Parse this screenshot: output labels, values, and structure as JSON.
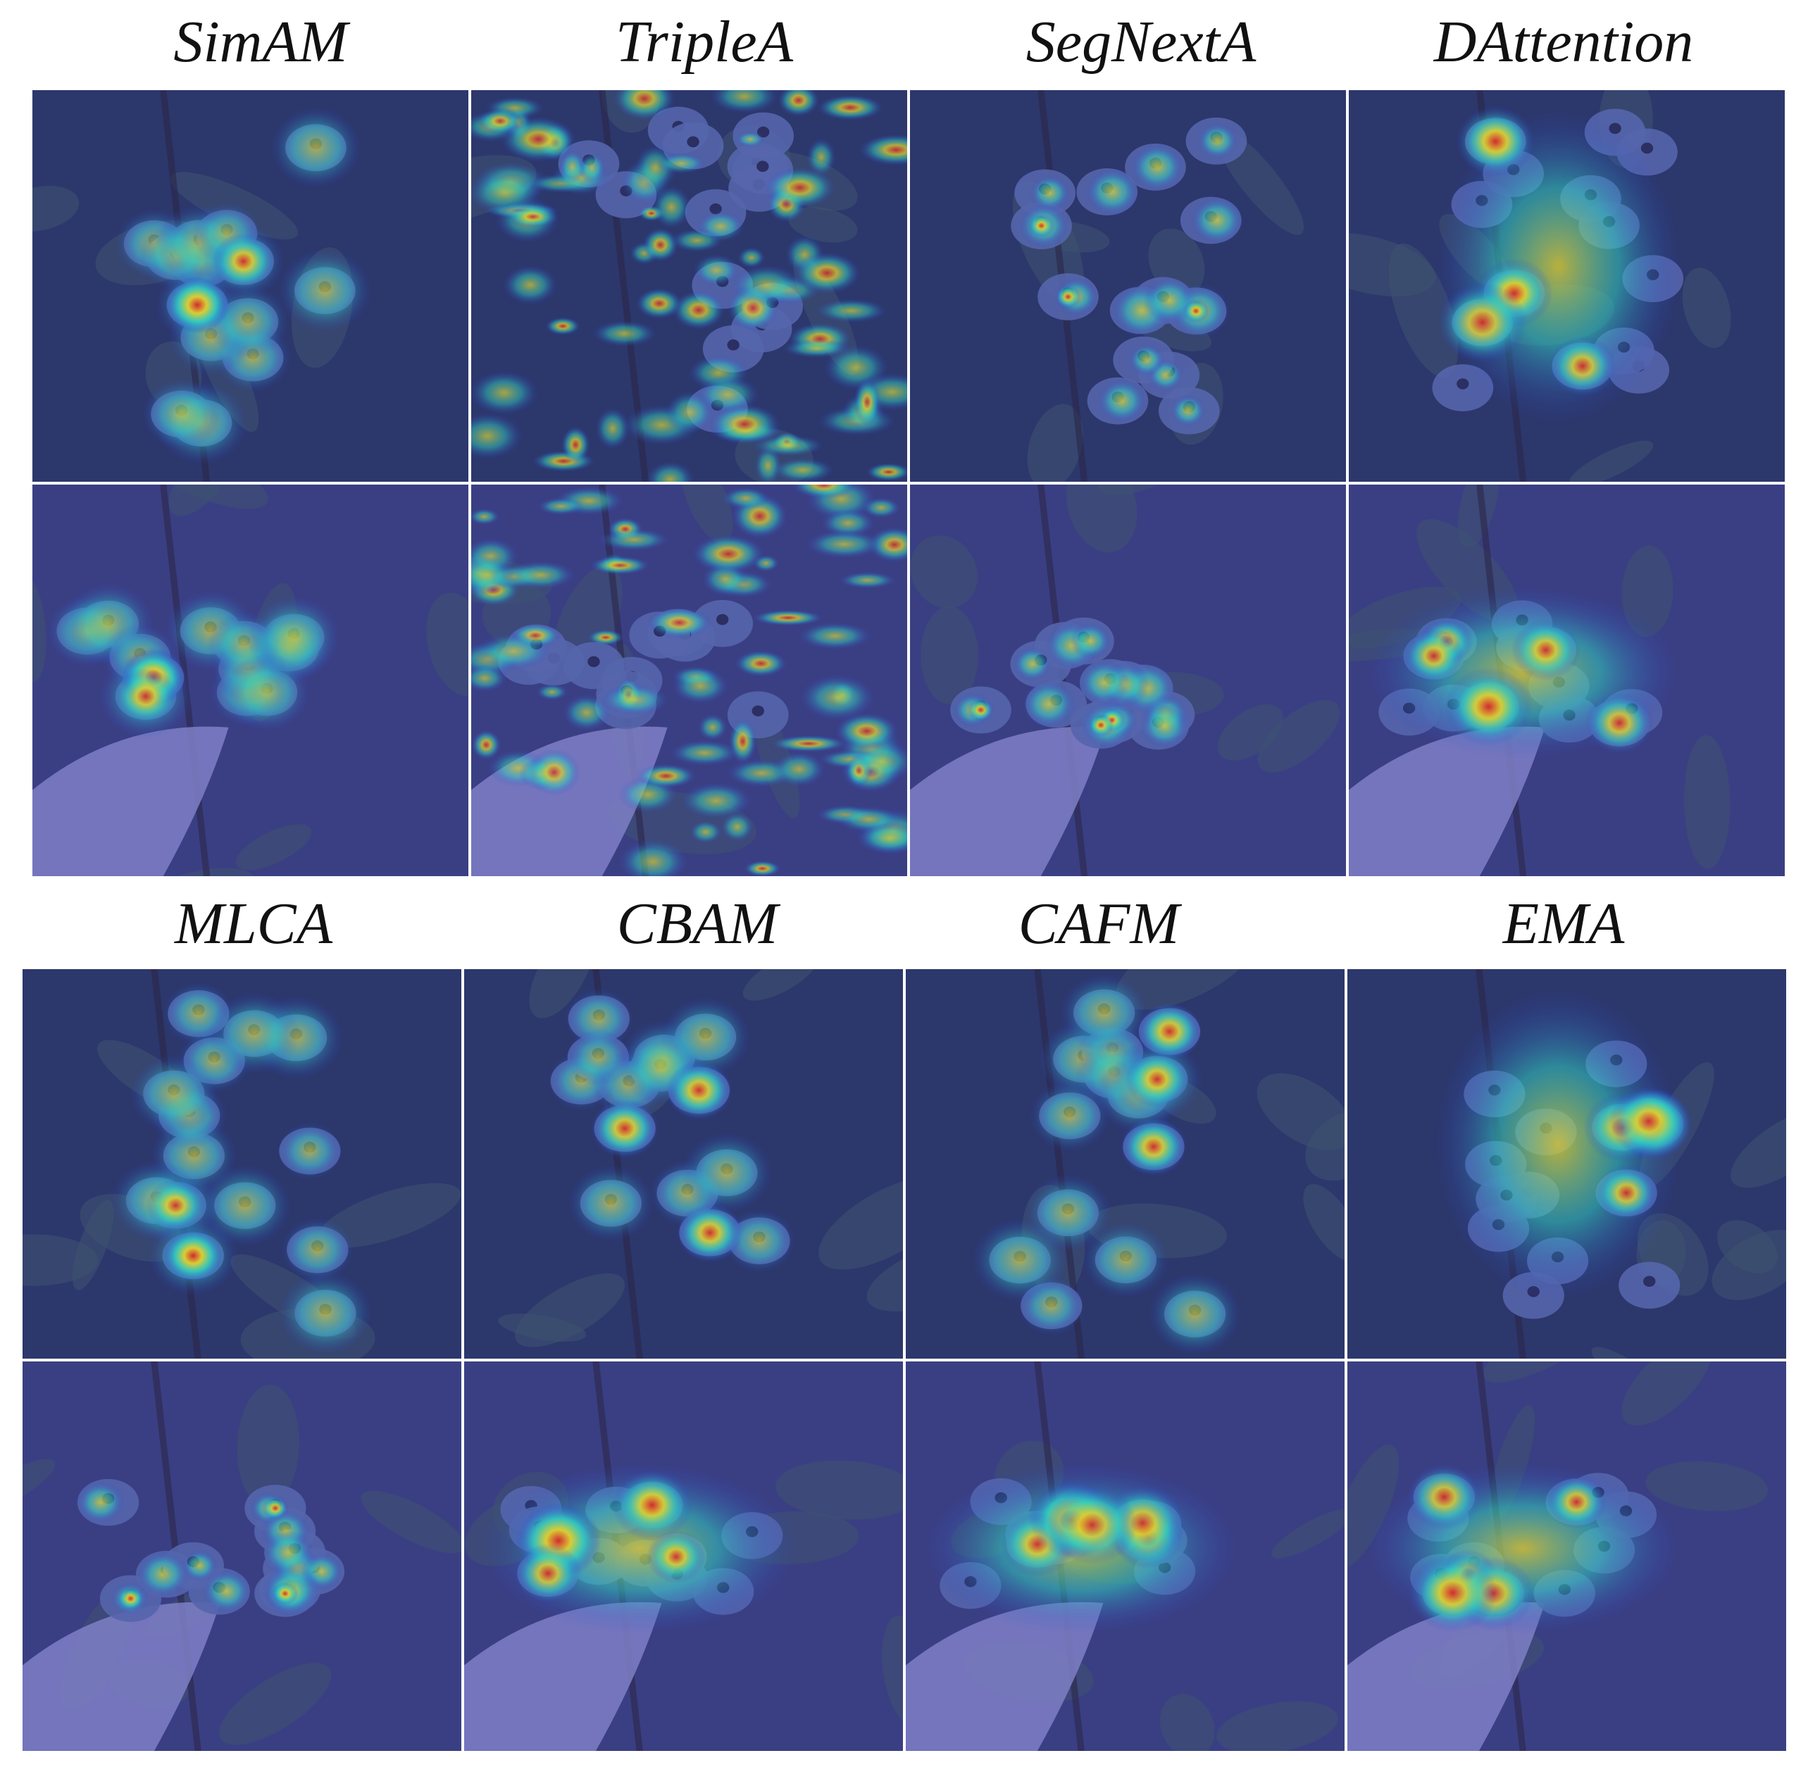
{
  "figure": {
    "panels_top": {
      "titles": [
        "SimAM",
        "TripleA",
        "SegNextA",
        "DAttention"
      ]
    },
    "panels_bottom": {
      "titles": [
        "MLCA",
        "CBAM",
        "CAFM",
        "EMA"
      ]
    },
    "rows_per_panel": 2,
    "cells": [
      {
        "scene": "cluster",
        "pattern": "focused",
        "intensity": 0.75
      },
      {
        "scene": "cluster",
        "pattern": "noisy",
        "intensity": 0.9
      },
      {
        "scene": "cluster",
        "pattern": "sparse",
        "intensity": 0.5
      },
      {
        "scene": "cluster",
        "pattern": "broad",
        "intensity": 0.85
      },
      {
        "scene": "hand",
        "pattern": "focused",
        "intensity": 0.75
      },
      {
        "scene": "hand",
        "pattern": "noisy",
        "intensity": 0.7
      },
      {
        "scene": "hand",
        "pattern": "sparse",
        "intensity": 0.5
      },
      {
        "scene": "hand",
        "pattern": "broad",
        "intensity": 0.85
      },
      {
        "scene": "cluster",
        "pattern": "focused",
        "intensity": 0.6
      },
      {
        "scene": "cluster",
        "pattern": "focused",
        "intensity": 0.8
      },
      {
        "scene": "cluster",
        "pattern": "focused",
        "intensity": 0.8
      },
      {
        "scene": "cluster",
        "pattern": "broad",
        "intensity": 0.95
      },
      {
        "scene": "hand",
        "pattern": "sparse",
        "intensity": 0.55
      },
      {
        "scene": "hand",
        "pattern": "broad",
        "intensity": 0.85
      },
      {
        "scene": "hand",
        "pattern": "broad",
        "intensity": 0.9
      },
      {
        "scene": "hand",
        "pattern": "broad",
        "intensity": 0.95
      }
    ],
    "colors": {
      "background_cluster": "#2b3660",
      "background_hand": "#3b3f7a",
      "leaf": "#3f5566",
      "berry": "#5a6aa8",
      "hand": "#8a88c8",
      "heat_low": "#2e3fd8",
      "heat_mid": "#2fe0c0",
      "heat_high": "#f2e21e",
      "heat_peak": "#e8281c"
    }
  }
}
